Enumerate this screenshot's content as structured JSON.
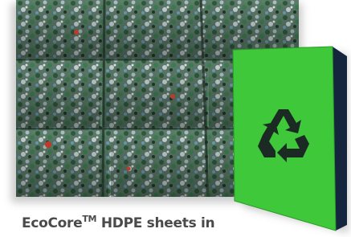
{
  "caption": {
    "brand": "EcoCore",
    "trademark": "TM",
    "text": "HDPE sheets in"
  }
}
